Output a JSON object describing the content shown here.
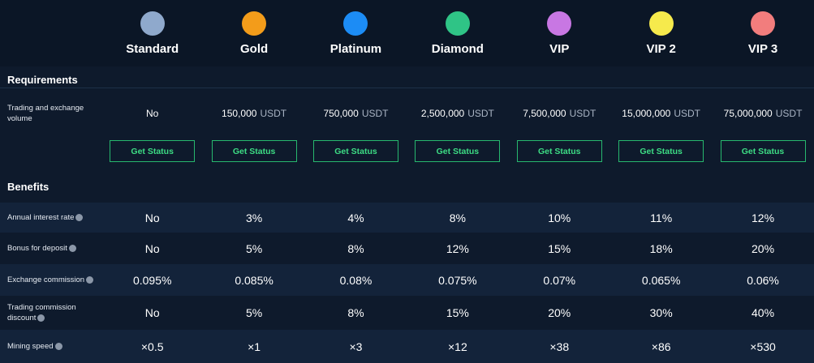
{
  "tiers": [
    {
      "name": "Standard",
      "icon_color": "#8fa9cc"
    },
    {
      "name": "Gold",
      "icon_color": "#f39c1a"
    },
    {
      "name": "Platinum",
      "icon_color": "#1c8cf5"
    },
    {
      "name": "Diamond",
      "icon_color": "#2fc486"
    },
    {
      "name": "VIP",
      "icon_color": "#c877e3"
    },
    {
      "name": "VIP 2",
      "icon_color": "#f6ea4c"
    },
    {
      "name": "VIP 3",
      "icon_color": "#f27d7d"
    }
  ],
  "requirements": {
    "title": "Requirements",
    "rows": [
      {
        "label": "Trading and exchange volume",
        "values": [
          {
            "amount": "No"
          },
          {
            "amount": "150,000",
            "unit": "USDT"
          },
          {
            "amount": "750,000",
            "unit": "USDT"
          },
          {
            "amount": "2,500,000",
            "unit": "USDT"
          },
          {
            "amount": "7,500,000",
            "unit": "USDT"
          },
          {
            "amount": "15,000,000",
            "unit": "USDT"
          },
          {
            "amount": "75,000,000",
            "unit": "USDT"
          }
        ]
      }
    ],
    "buttons": [
      "Get Status",
      "Get Status",
      "Get Status",
      "Get Status",
      "Get Status",
      "Get Status",
      "Get Status"
    ]
  },
  "benefits": {
    "title": "Benefits",
    "rows": [
      {
        "label": "Annual interest rate",
        "values": [
          "No",
          "3%",
          "4%",
          "8%",
          "10%",
          "11%",
          "12%"
        ]
      },
      {
        "label": "Bonus for deposit",
        "values": [
          "No",
          "5%",
          "8%",
          "12%",
          "15%",
          "18%",
          "20%"
        ]
      },
      {
        "label": "Exchange commission",
        "values": [
          "0.095%",
          "0.085%",
          "0.08%",
          "0.075%",
          "0.07%",
          "0.065%",
          "0.06%"
        ]
      },
      {
        "label": "Trading commission discount",
        "values": [
          "No",
          "5%",
          "8%",
          "15%",
          "20%",
          "30%",
          "40%"
        ]
      },
      {
        "label": "Mining speed",
        "values": [
          "×0.5",
          "×1",
          "×3",
          "×12",
          "×38",
          "×86",
          "×530"
        ]
      }
    ]
  }
}
